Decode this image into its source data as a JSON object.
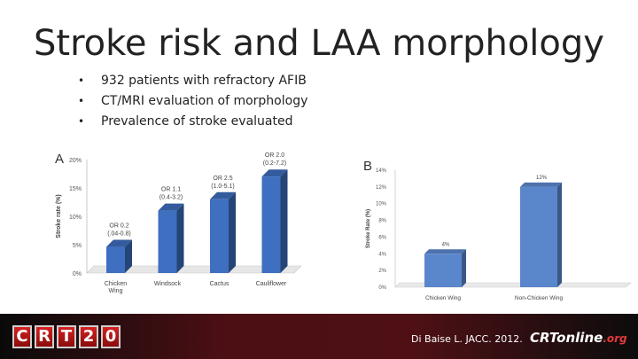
{
  "slide": {
    "title": "Stroke risk and LAA morphology",
    "bullets": [
      "932 patients with refractory AFIB",
      "CT/MRI evaluation of morphology",
      "Prevalence of stroke evaluated"
    ],
    "bullet_glyph": "•"
  },
  "footer": {
    "logo_letters": [
      "C",
      "R",
      "T",
      "2",
      "0"
    ],
    "citation": "Di Baise L. JACC. 2012.",
    "site_name": "CRTonline",
    "site_suffix": ".org"
  },
  "chart_data": [
    {
      "type": "bar",
      "panel_label": "A",
      "categories": [
        "Chicken\nWing",
        "Windsock",
        "Cactus",
        "Cauliflower"
      ],
      "values": [
        4.6,
        11.0,
        13.0,
        17.0
      ],
      "annotations": [
        "OR 0.2\n(.04-0.8)",
        "OR 1.1\n(0.4-3.2)",
        "OR 2.5\n(1.0-5.1)",
        "OR 2.0\n(0.2-7.2)"
      ],
      "ylabel": "Stroke rate (%)",
      "yticks": [
        "0%",
        "5%",
        "10%",
        "15%",
        "20%"
      ],
      "ylim": [
        0,
        20
      ],
      "bar_color": "#3e6fc0",
      "grid": false
    },
    {
      "type": "bar",
      "panel_label": "B",
      "categories": [
        "Chicken Wing",
        "Non-Chicken Wing"
      ],
      "values": [
        4,
        12
      ],
      "data_labels": [
        "4%",
        "12%"
      ],
      "ylabel": "Stroke Rate (%)",
      "yticks": [
        "0%",
        "2%",
        "4%",
        "6%",
        "8%",
        "10%",
        "12%",
        "14%"
      ],
      "ylim": [
        0,
        14
      ],
      "bar_color": "#5a86cc",
      "grid": false
    }
  ]
}
